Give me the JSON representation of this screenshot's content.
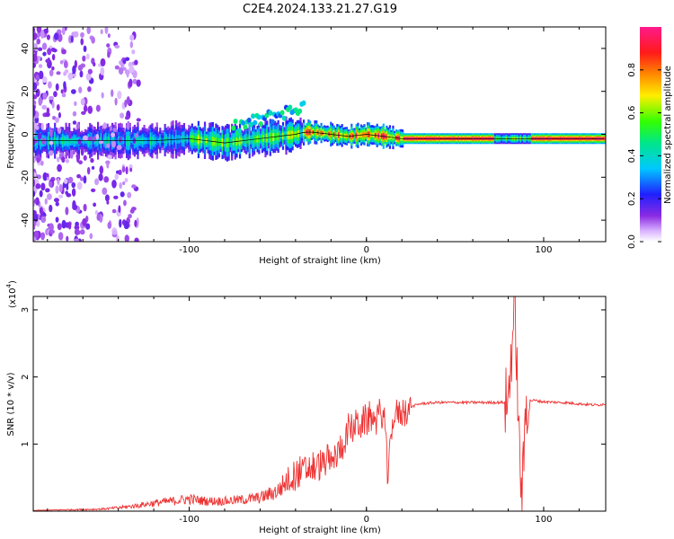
{
  "figure": {
    "title": "C2E4.2024.133.21.27.G19"
  },
  "colorbar": {
    "label": "Normalized spectral amplitude",
    "ticks": [
      "0.0",
      "0.2",
      "0.4",
      "0.6",
      "0.8"
    ],
    "tick_values": [
      0.0,
      0.2,
      0.4,
      0.6,
      0.8
    ],
    "range": [
      0,
      1
    ],
    "colormap": "rainbow (purple-blue-cyan-green-yellow-red-magenta)"
  },
  "chart_data": [
    {
      "type": "heatmap",
      "description_of_content": "spectrogram",
      "xlabel": "Height of straight line (km)",
      "ylabel": "Frequency (Hz)",
      "xlim": [
        -188,
        135
      ],
      "ylim": [
        -50,
        50
      ],
      "xticks": [
        -100,
        0,
        100
      ],
      "xtick_labels": [
        "-100",
        "0",
        "100"
      ],
      "yticks": [
        -40,
        -20,
        0,
        20,
        40
      ],
      "ytick_labels": [
        "-40",
        "-20",
        "0",
        "20",
        "40"
      ],
      "ridge": {
        "x": [
          -185,
          -160,
          -140,
          -120,
          -100,
          -90,
          -80,
          -70,
          -60,
          -50,
          -40,
          -35,
          -30,
          -20,
          -10,
          0,
          10,
          20,
          40,
          60,
          80,
          100,
          120,
          135
        ],
        "y": [
          -3,
          -3,
          -3,
          -3,
          -2,
          -3,
          -4,
          -3,
          -2,
          -1,
          0,
          1,
          1,
          0,
          -1,
          0,
          -1,
          -2,
          -2,
          -2,
          -2,
          -2,
          -2,
          -2
        ]
      }
    },
    {
      "type": "line",
      "xlabel": "Height of straight line (km)",
      "ylabel": "SNR (10 * v/v)",
      "y_multiplier_label": "(x10",
      "y_multiplier_exp": "4",
      "y_multiplier_close": ")",
      "xlim": [
        -188,
        135
      ],
      "ylim": [
        0,
        3.2
      ],
      "xticks": [
        -100,
        0,
        100
      ],
      "xtick_labels": [
        "-100",
        "0",
        "100"
      ],
      "yticks": [
        1,
        2,
        3
      ],
      "ytick_labels": [
        "1",
        "2",
        "3"
      ],
      "color": "#ee3333",
      "series": [
        {
          "x": [
            -188,
            -170,
            -150,
            -140,
            -130,
            -120,
            -110,
            -100,
            -90,
            -80,
            -70,
            -60,
            -50,
            -45,
            -40,
            -35,
            -30,
            -25,
            -22,
            -20,
            -18,
            -15,
            -12,
            -10,
            -5,
            0,
            5,
            10,
            12,
            15,
            20,
            25,
            30,
            40,
            50,
            60,
            70,
            75,
            80,
            82,
            84,
            86,
            88,
            90,
            95,
            100,
            110,
            120,
            130,
            135
          ],
          "y": [
            0.01,
            0.02,
            0.03,
            0.05,
            0.08,
            0.12,
            0.15,
            0.18,
            0.15,
            0.15,
            0.17,
            0.2,
            0.3,
            0.45,
            0.55,
            0.6,
            0.65,
            0.7,
            0.75,
            0.7,
            0.8,
            0.9,
            1.1,
            1.2,
            1.3,
            1.35,
            1.4,
            1.45,
            0.5,
            1.4,
            1.5,
            1.55,
            1.6,
            1.62,
            1.62,
            1.62,
            1.62,
            1.62,
            1.62,
            2.5,
            3.1,
            1.0,
            0.2,
            1.65,
            1.65,
            1.63,
            1.62,
            1.6,
            1.58,
            1.6
          ]
        }
      ]
    }
  ]
}
